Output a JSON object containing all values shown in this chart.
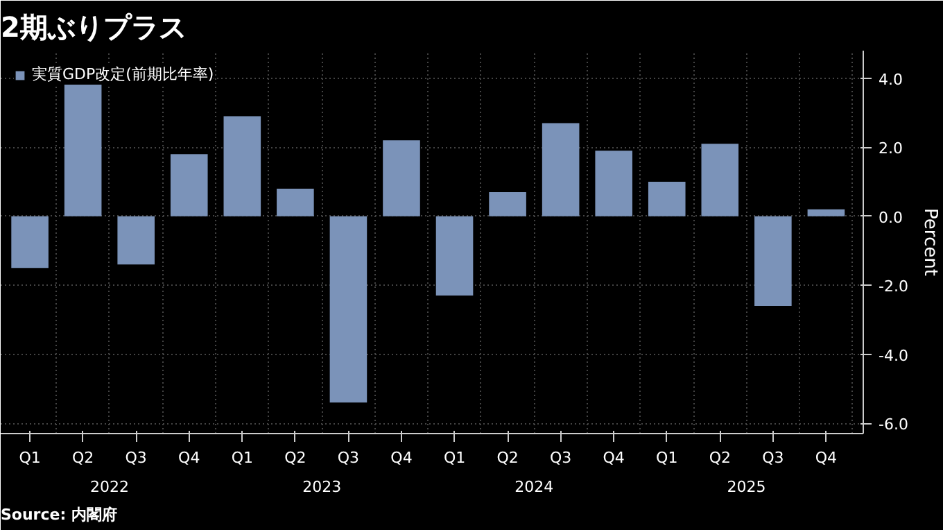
{
  "chart_data": {
    "type": "bar",
    "title": "2期ぶりプラス",
    "categories": [
      "Q1",
      "Q2",
      "Q3",
      "Q4",
      "Q1",
      "Q2",
      "Q3",
      "Q4",
      "Q1",
      "Q2",
      "Q3",
      "Q4",
      "Q1",
      "Q2",
      "Q3",
      "Q4"
    ],
    "series": [
      {
        "name": "実質GDP改定(前期比年率)",
        "color": "#7b93b9",
        "values": [
          -1.5,
          3.9,
          -1.4,
          1.8,
          2.9,
          0.8,
          -5.4,
          2.2,
          -2.3,
          0.7,
          2.7,
          1.9,
          1.0,
          2.1,
          -2.6,
          0.2
        ]
      }
    ],
    "ylabel": "Percent",
    "ylim": [
      -6.3,
      4.8
    ],
    "yticks": [
      {
        "value": 4,
        "label": "4.0"
      },
      {
        "value": 2,
        "label": "2.0"
      },
      {
        "value": 0,
        "label": "0.0"
      },
      {
        "value": -2,
        "label": "-2.0"
      },
      {
        "value": -4,
        "label": "-4.0"
      },
      {
        "value": -6,
        "label": "-6.0"
      }
    ],
    "annotations": [
      "2022",
      "2023",
      "2024",
      "2025",
      "Source: 内閣府"
    ],
    "grid": true,
    "legend": "top left"
  }
}
